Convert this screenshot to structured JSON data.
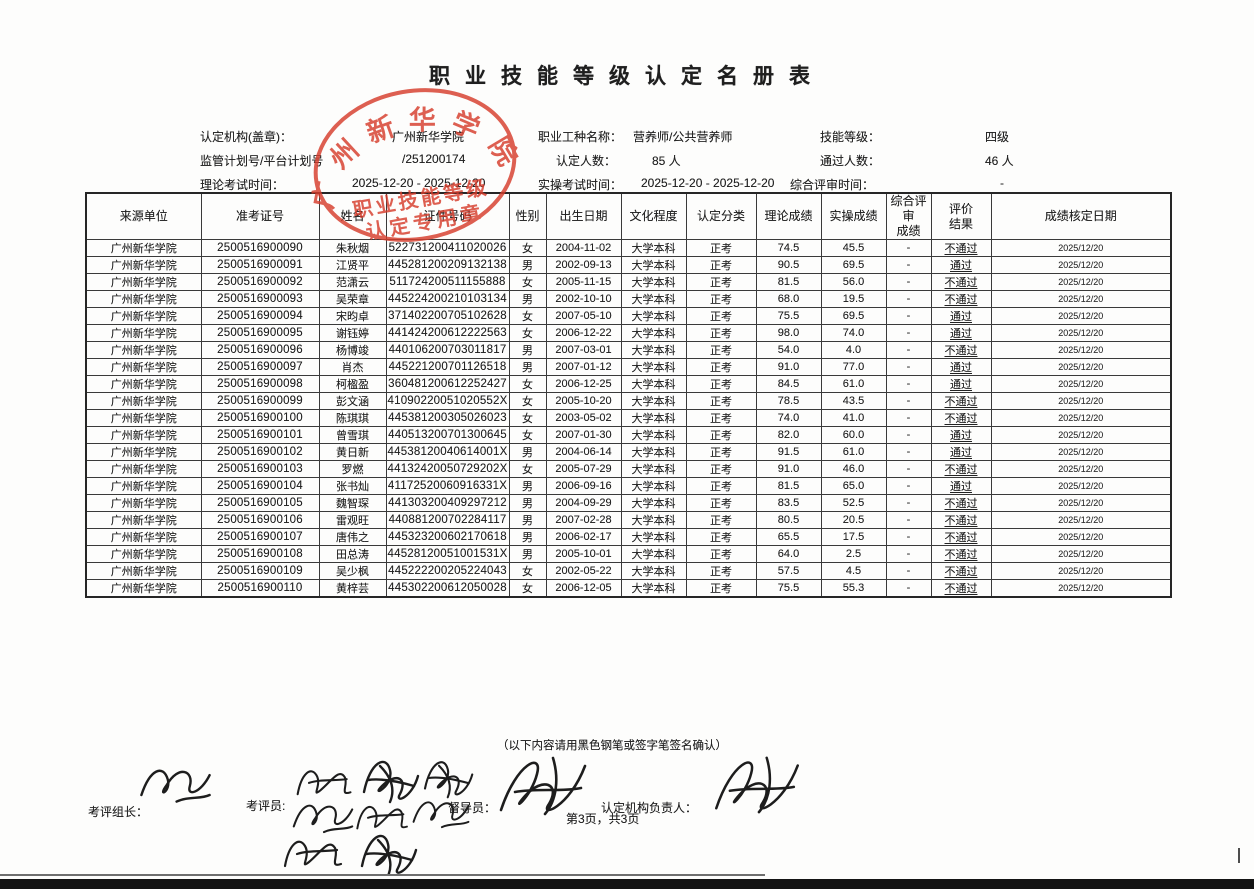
{
  "title": "职业技能等级认定名册表",
  "info": {
    "org_label": "认定机构(盖章)：",
    "org_value": "广州新华学院",
    "plan_label": "监管计划号/平台计划号",
    "plan_value": "/251200174",
    "theory_time_label": "理论考试时间：",
    "theory_time_value": "2025-12-20 - 2025-12-20",
    "job_label": "职业工种名称：",
    "job_value": "营养师/公共营养师",
    "count_label": "认定人数：",
    "count_value": "85 人",
    "practical_time_label": "实操考试时间：",
    "practical_time_value": "2025-12-20 - 2025-12-20",
    "level_label": "技能等级：",
    "level_value": "四级",
    "pass_label": "通过人数：",
    "pass_value": "46 人",
    "review_time_label": "综合评审时间：",
    "review_time_value": "-"
  },
  "stamp": {
    "ring_text": "广州新华学院",
    "inner_line1": "职业技能等级",
    "inner_line2": "认定专用章",
    "color": "#d63d2c"
  },
  "table": {
    "columns": [
      "来源单位",
      "准考证号",
      "姓名",
      "证件号码",
      "性别",
      "出生日期",
      "文化程度",
      "认定分类",
      "理论成绩",
      "实操成绩",
      "综合评审\n成绩",
      "评价\n结果",
      "成绩核定日期"
    ],
    "rows": [
      [
        "广州新华学院",
        "2500516900090",
        "朱秋烟",
        "522731200411020026",
        "女",
        "2004-11-02",
        "大学本科",
        "正考",
        "74.5",
        "45.5",
        "-",
        "不通过",
        "2025/12/20"
      ],
      [
        "广州新华学院",
        "2500516900091",
        "江贤平",
        "445281200209132138",
        "男",
        "2002-09-13",
        "大学本科",
        "正考",
        "90.5",
        "69.5",
        "-",
        "通过",
        "2025/12/20"
      ],
      [
        "广州新华学院",
        "2500516900092",
        "范潇云",
        "511724200511155888",
        "女",
        "2005-11-15",
        "大学本科",
        "正考",
        "81.5",
        "56.0",
        "-",
        "不通过",
        "2025/12/20"
      ],
      [
        "广州新华学院",
        "2500516900093",
        "吴荣章",
        "445224200210103134",
        "男",
        "2002-10-10",
        "大学本科",
        "正考",
        "68.0",
        "19.5",
        "-",
        "不通过",
        "2025/12/20"
      ],
      [
        "广州新华学院",
        "2500516900094",
        "宋昀卓",
        "371402200705102628",
        "女",
        "2007-05-10",
        "大学本科",
        "正考",
        "75.5",
        "69.5",
        "-",
        "通过",
        "2025/12/20"
      ],
      [
        "广州新华学院",
        "2500516900095",
        "谢钰婷",
        "441424200612222563",
        "女",
        "2006-12-22",
        "大学本科",
        "正考",
        "98.0",
        "74.0",
        "-",
        "通过",
        "2025/12/20"
      ],
      [
        "广州新华学院",
        "2500516900096",
        "杨博竣",
        "440106200703011817",
        "男",
        "2007-03-01",
        "大学本科",
        "正考",
        "54.0",
        "4.0",
        "-",
        "不通过",
        "2025/12/20"
      ],
      [
        "广州新华学院",
        "2500516900097",
        "肖杰",
        "445221200701126518",
        "男",
        "2007-01-12",
        "大学本科",
        "正考",
        "91.0",
        "77.0",
        "-",
        "通过",
        "2025/12/20"
      ],
      [
        "广州新华学院",
        "2500516900098",
        "柯楹盈",
        "360481200612252427",
        "女",
        "2006-12-25",
        "大学本科",
        "正考",
        "84.5",
        "61.0",
        "-",
        "通过",
        "2025/12/20"
      ],
      [
        "广州新华学院",
        "2500516900099",
        "彭文涵",
        "41090220051020552X",
        "女",
        "2005-10-20",
        "大学本科",
        "正考",
        "78.5",
        "43.5",
        "-",
        "不通过",
        "2025/12/20"
      ],
      [
        "广州新华学院",
        "2500516900100",
        "陈琪琪",
        "445381200305026023",
        "女",
        "2003-05-02",
        "大学本科",
        "正考",
        "74.0",
        "41.0",
        "-",
        "不通过",
        "2025/12/20"
      ],
      [
        "广州新华学院",
        "2500516900101",
        "曾雪琪",
        "440513200701300645",
        "女",
        "2007-01-30",
        "大学本科",
        "正考",
        "82.0",
        "60.0",
        "-",
        "通过",
        "2025/12/20"
      ],
      [
        "广州新华学院",
        "2500516900102",
        "黄日新",
        "44538120040614001X",
        "男",
        "2004-06-14",
        "大学本科",
        "正考",
        "91.5",
        "61.0",
        "-",
        "通过",
        "2025/12/20"
      ],
      [
        "广州新华学院",
        "2500516900103",
        "罗燃",
        "44132420050729202X",
        "女",
        "2005-07-29",
        "大学本科",
        "正考",
        "91.0",
        "46.0",
        "-",
        "不通过",
        "2025/12/20"
      ],
      [
        "广州新华学院",
        "2500516900104",
        "张书灿",
        "41172520060916331X",
        "男",
        "2006-09-16",
        "大学本科",
        "正考",
        "81.5",
        "65.0",
        "-",
        "通过",
        "2025/12/20"
      ],
      [
        "广州新华学院",
        "2500516900105",
        "魏智琛",
        "441303200409297212",
        "男",
        "2004-09-29",
        "大学本科",
        "正考",
        "83.5",
        "52.5",
        "-",
        "不通过",
        "2025/12/20"
      ],
      [
        "广州新华学院",
        "2500516900106",
        "雷观旺",
        "440881200702284117",
        "男",
        "2007-02-28",
        "大学本科",
        "正考",
        "80.5",
        "20.5",
        "-",
        "不通过",
        "2025/12/20"
      ],
      [
        "广州新华学院",
        "2500516900107",
        "唐伟之",
        "445323200602170618",
        "男",
        "2006-02-17",
        "大学本科",
        "正考",
        "65.5",
        "17.5",
        "-",
        "不通过",
        "2025/12/20"
      ],
      [
        "广州新华学院",
        "2500516900108",
        "田总涛",
        "44528120051001531X",
        "男",
        "2005-10-01",
        "大学本科",
        "正考",
        "64.0",
        "2.5",
        "-",
        "不通过",
        "2025/12/20"
      ],
      [
        "广州新华学院",
        "2500516900109",
        "吴少枫",
        "445222200205224043",
        "女",
        "2002-05-22",
        "大学本科",
        "正考",
        "57.5",
        "4.5",
        "-",
        "不通过",
        "2025/12/20"
      ],
      [
        "广州新华学院",
        "2500516900110",
        "黄梓芸",
        "445302200612050028",
        "女",
        "2006-12-05",
        "大学本科",
        "正考",
        "75.5",
        "55.3",
        "-",
        "不通过",
        "2025/12/20"
      ]
    ]
  },
  "footer": {
    "note": "（以下内容请用黑色钢笔或签字笔签名确认）",
    "examiner_lead_label": "考评组长：",
    "examiner_label": "考评员:",
    "supervisor_label": "督导员：",
    "org_head_label": "认定机构负责人：",
    "page_info": "第3页，共3页"
  }
}
